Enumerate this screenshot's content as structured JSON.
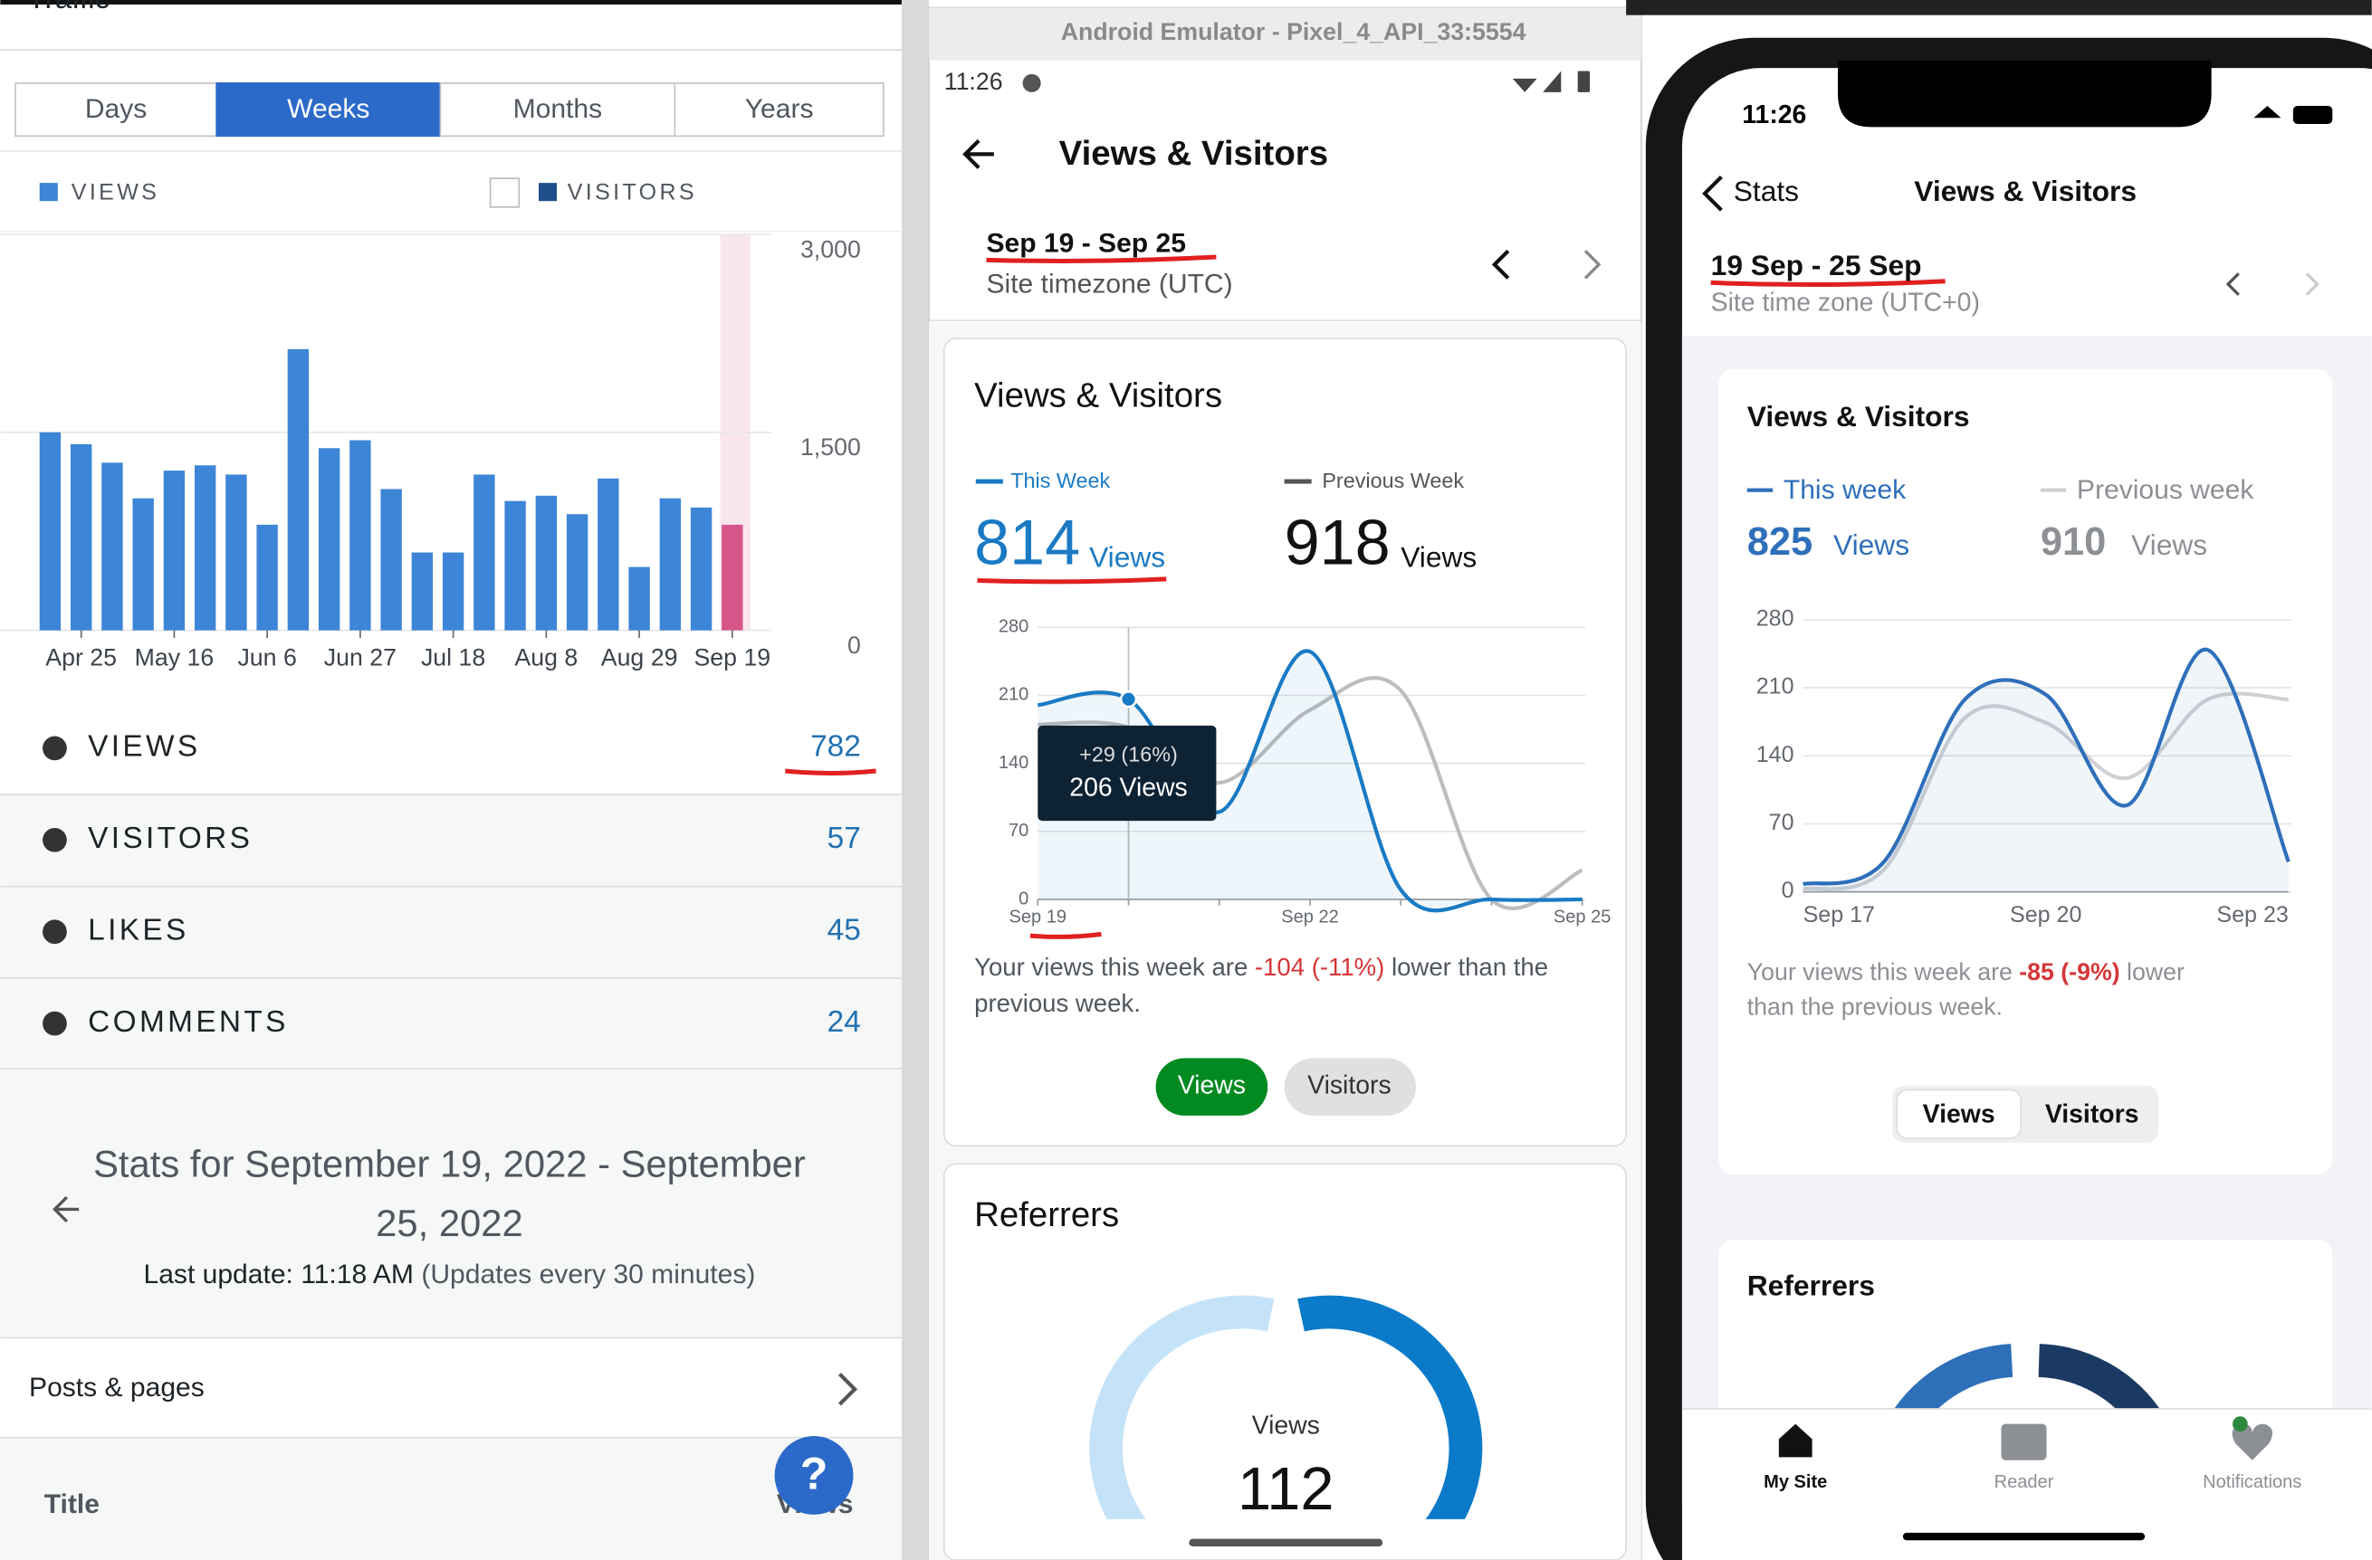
{
  "left": {
    "header": "Traffic",
    "tabs": [
      "Days",
      "Weeks",
      "Months",
      "Years"
    ],
    "active_tab": 1,
    "legend": [
      "VIEWS",
      "VISITORS"
    ],
    "stats": [
      {
        "label": "VIEWS",
        "value": 782
      },
      {
        "label": "VISITORS",
        "value": 57
      },
      {
        "label": "LIKES",
        "value": 45
      },
      {
        "label": "COMMENTS",
        "value": 24
      }
    ],
    "stats_title": [
      "Stats for September 19, 2022 - September",
      "25, 2022"
    ],
    "last_update": [
      "Last update: 11:18 AM",
      " (Updates every 30 minutes)"
    ],
    "posts_pages": "Posts & pages",
    "table_header": [
      "Title",
      "Views"
    ],
    "help": "?"
  },
  "android": {
    "window_title": "Android Emulator - Pixel_4_API_33:5554",
    "time": "11:26",
    "title": "Views & Visitors",
    "range": "Sep 19 - Sep 25",
    "timezone": "Site timezone (UTC)",
    "card_title": "Views & Visitors",
    "this_total": 814,
    "this_unit": "Views",
    "prev_total": 918,
    "prev_unit": "Views",
    "tooltip": [
      "+29 (16%)",
      "206 Views"
    ],
    "sentence": [
      "Your views this week are ",
      "-104 (-11%)",
      " lower than the",
      "previous week."
    ],
    "buttons": [
      "Views",
      "Visitors"
    ],
    "referrers": "Referrers",
    "donut_label": "Views",
    "donut_value": 112
  },
  "ios": {
    "time": "11:26",
    "back": "Stats",
    "title": "Views & Visitors",
    "range": "19 Sep - 25 Sep",
    "timezone": "Site time zone (UTC+0)",
    "card_title": "Views & Visitors",
    "this_total": 825,
    "this_unit": "Views",
    "prev_total": 910,
    "prev_unit": "Views",
    "sentence": [
      "Your views this week are ",
      "-85 (-9%)",
      " lower",
      "than the previous week."
    ],
    "segments": [
      "Views",
      "Visitors"
    ],
    "referrers": "Referrers",
    "tabs": [
      "My Site",
      "Reader",
      "Notifications"
    ]
  },
  "chart_data": [
    {
      "type": "bar",
      "categories": [
        null,
        "Apr 25",
        null,
        null,
        "May 16",
        null,
        null,
        "Jun 6",
        null,
        null,
        "Jun 27",
        null,
        null,
        "Jul 18",
        null,
        null,
        "Aug 8",
        null,
        null,
        "Aug 29",
        null,
        null,
        "Sep 19"
      ],
      "values": [
        1500,
        1410,
        1270,
        1000,
        1210,
        1250,
        1180,
        800,
        2130,
        1380,
        1440,
        1070,
        590,
        590,
        1180,
        980,
        1020,
        880,
        1150,
        480,
        1000,
        930,
        800
      ],
      "colors": [
        "#3d85d6",
        "#3d85d6",
        "#3d85d6",
        "#3d85d6",
        "#3d85d6",
        "#3d85d6",
        "#3d85d6",
        "#3d85d6",
        "#3d85d6",
        "#3d85d6",
        "#3d85d6",
        "#3d85d6",
        "#3d85d6",
        "#3d85d6",
        "#3d85d6",
        "#3d85d6",
        "#3d85d6",
        "#3d85d6",
        "#3d85d6",
        "#3d85d6",
        "#3d85d6",
        "#3d85d6",
        "#d6568a"
      ],
      "ylim": [
        0,
        3000
      ],
      "yticks": [
        0,
        {
          "value": 1500,
          "label": "1,500"
        },
        {
          "value": 3000,
          "label": "3,000"
        }
      ],
      "grid": true
    },
    {
      "type": "line",
      "categories": [
        "Sep 19",
        null,
        null,
        "Sep 22",
        null,
        null,
        "Sep 25"
      ],
      "series": [
        {
          "name": "This Week",
          "color": "#1a7ac4",
          "values": [
            200,
            206,
            90,
            255,
            10,
            0,
            0
          ]
        },
        {
          "name": "Previous Week",
          "color": "#bdbdbd",
          "values": [
            180,
            177,
            120,
            195,
            215,
            0,
            30
          ]
        }
      ],
      "ylim": [
        0,
        280
      ],
      "yticks": [
        0,
        70,
        140,
        210,
        280
      ],
      "grid": true
    },
    {
      "type": "line",
      "categories": [
        "Sep 17",
        null,
        null,
        "Sep 20",
        null,
        null,
        "Sep 23"
      ],
      "series": [
        {
          "name": "This week",
          "color": "#2e6fba",
          "values": [
            8,
            31,
            198,
            203,
            89,
            249,
            31
          ]
        },
        {
          "name": "Previous week",
          "color": "#cfd1d4",
          "values": [
            3,
            23,
            179,
            174,
            117,
            198,
            198
          ]
        }
      ],
      "ylim": [
        0,
        280
      ],
      "yticks": [
        0,
        70,
        140,
        210,
        280
      ],
      "grid": true
    }
  ]
}
